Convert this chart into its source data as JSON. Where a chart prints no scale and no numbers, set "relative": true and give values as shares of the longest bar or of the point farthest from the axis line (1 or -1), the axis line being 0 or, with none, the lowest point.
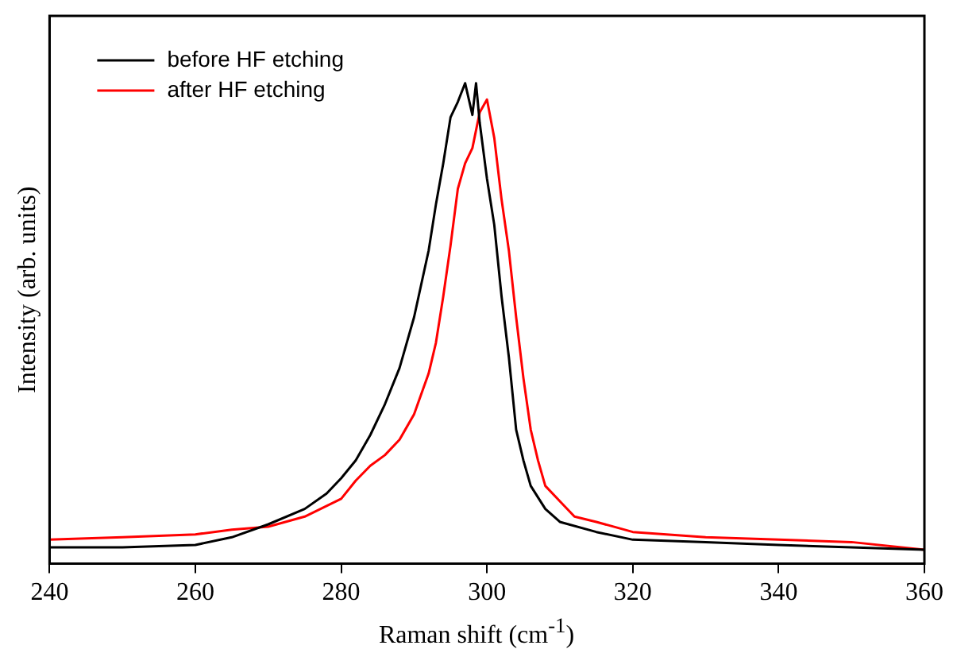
{
  "chart_data": {
    "type": "line",
    "xlabel": "Raman shift (cm$^{-1}$)",
    "ylabel": "Intensity (arb. units)",
    "relative": true,
    "xlim": [
      240,
      360
    ],
    "xticks": [
      240,
      260,
      280,
      300,
      320,
      340,
      360
    ],
    "legend": "top left",
    "grid": false,
    "marker": "none",
    "line_style": "solid",
    "series": [
      {
        "name": "before HF etching",
        "color": "#000000",
        "x": [
          240,
          250,
          260,
          265,
          270,
          275,
          278,
          280,
          282,
          284,
          286,
          288,
          290,
          292,
          293,
          294,
          295,
          296,
          297,
          298,
          298.5,
          299,
          300,
          301,
          302,
          303,
          304,
          305,
          306,
          308,
          310,
          315,
          320,
          330,
          340,
          350,
          360
        ],
        "values": [
          0.034,
          0.034,
          0.039,
          0.055,
          0.082,
          0.114,
          0.146,
          0.178,
          0.215,
          0.268,
          0.332,
          0.407,
          0.513,
          0.652,
          0.748,
          0.833,
          0.929,
          0.961,
          1,
          0.934,
          1,
          0.918,
          0.801,
          0.705,
          0.556,
          0.43,
          0.279,
          0.215,
          0.162,
          0.114,
          0.087,
          0.066,
          0.05,
          0.045,
          0.039,
          0.034,
          0.029
        ]
      },
      {
        "name": "after HF etching",
        "color": "#ff0000",
        "x": [
          240,
          250,
          260,
          265,
          270,
          275,
          280,
          282,
          284,
          286,
          288,
          290,
          292,
          293,
          294,
          295,
          296,
          297,
          298,
          299,
          300,
          301,
          302,
          303,
          304,
          305,
          306,
          307,
          308,
          310,
          312,
          315,
          320,
          330,
          340,
          350,
          360
        ],
        "values": [
          0.05,
          0.055,
          0.061,
          0.071,
          0.077,
          0.098,
          0.135,
          0.173,
          0.204,
          0.226,
          0.258,
          0.311,
          0.396,
          0.46,
          0.556,
          0.662,
          0.78,
          0.833,
          0.865,
          0.939,
          0.966,
          0.886,
          0.758,
          0.652,
          0.513,
          0.386,
          0.279,
          0.215,
          0.162,
          0.13,
          0.098,
          0.087,
          0.066,
          0.055,
          0.05,
          0.045,
          0.029
        ]
      }
    ]
  }
}
